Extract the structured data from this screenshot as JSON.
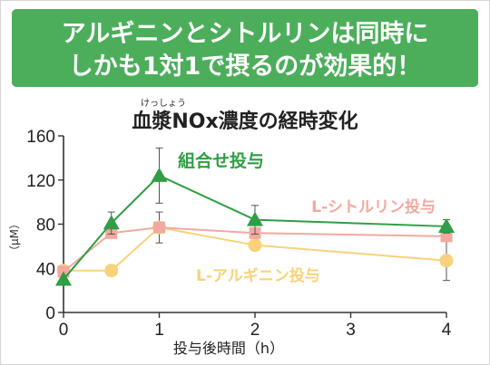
{
  "banner": {
    "line1": "アルギニンとシトルリンは同時に",
    "line2": "しかも1対1で摂るのが効果的！"
  },
  "chart_data": {
    "type": "line",
    "title_ruby": "けっしょう",
    "title": "血漿NOx濃度の経時変化",
    "xlabel": "投与後時間（h）",
    "ylabel": "（μM）",
    "xlim": [
      0,
      4
    ],
    "ylim": [
      0,
      160
    ],
    "xticks": [
      "0",
      "1",
      "2",
      "3",
      "4"
    ],
    "yticks": [
      "0",
      "40",
      "80",
      "120",
      "160"
    ],
    "grid": false,
    "series": [
      {
        "name": "組合せ投与",
        "color": "#2f9e44",
        "marker": "triangle",
        "x": [
          0,
          0.5,
          1,
          2,
          4
        ],
        "y": [
          30,
          81,
          124,
          84,
          78
        ],
        "err": [
          0,
          10,
          25,
          13,
          6
        ]
      },
      {
        "name": "L-シトルリン投与",
        "color": "#f2a9a0",
        "marker": "square",
        "x": [
          0,
          0.5,
          1,
          2,
          4
        ],
        "y": [
          37,
          72,
          77,
          72,
          69
        ],
        "err": [
          0,
          0,
          0,
          0,
          0
        ]
      },
      {
        "name": "L-アルギニン投与",
        "color": "#f8d27a",
        "marker": "circle",
        "x": [
          0,
          0.5,
          1,
          2,
          4
        ],
        "y": [
          38,
          38,
          77,
          61,
          47
        ],
        "err": [
          0,
          0,
          14,
          0,
          18
        ]
      }
    ]
  }
}
